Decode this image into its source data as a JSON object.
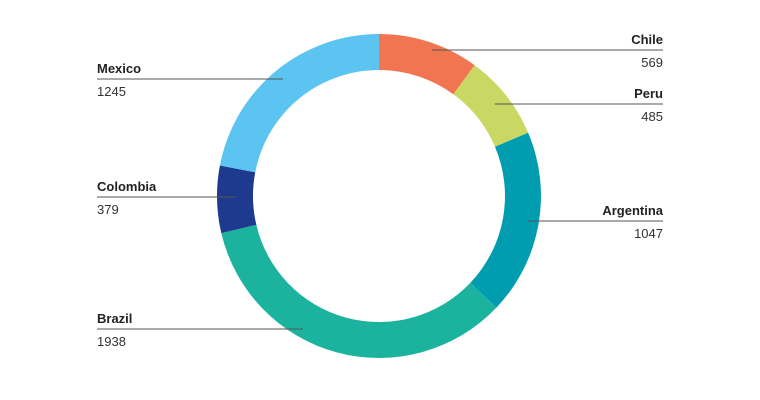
{
  "chart_data": {
    "type": "pie",
    "variant": "donut",
    "title": "",
    "slices": [
      {
        "label": "Chile",
        "value": 569,
        "color": "#f07550"
      },
      {
        "label": "Peru",
        "value": 485,
        "color": "#c9d863"
      },
      {
        "label": "Argentina",
        "value": 1047,
        "color": "#009caf"
      },
      {
        "label": "Brazil",
        "value": 1938,
        "color": "#1bb39e"
      },
      {
        "label": "Colombia",
        "value": 379,
        "color": "#1e3a8e"
      },
      {
        "label": "Mexico",
        "value": 1245,
        "color": "#5bc4f0"
      }
    ],
    "legend": "none"
  }
}
